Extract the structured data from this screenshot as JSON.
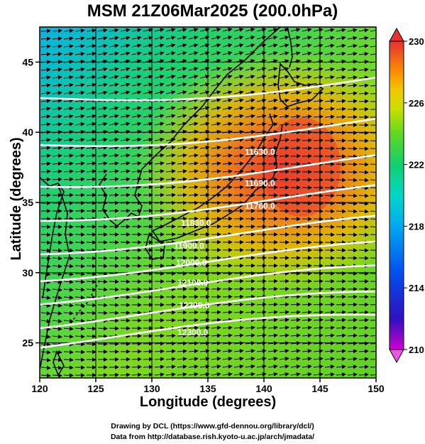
{
  "title": "MSM 21Z06Mar2025 (200.0hPa)",
  "x_axis": {
    "label": "Longitude (degrees)",
    "min": 120,
    "max": 150,
    "ticks": [
      120,
      125,
      130,
      135,
      140,
      145,
      150
    ]
  },
  "y_axis": {
    "label": "Latitude  (degrees)",
    "min": 22.5,
    "max": 47.5,
    "ticks": [
      25,
      30,
      35,
      40,
      45
    ]
  },
  "colorbar": {
    "min": 210,
    "max": 230,
    "labels": [
      230,
      226,
      222,
      218,
      214,
      210
    ],
    "colors": [
      "#d000d0",
      "#3010c0",
      "#0050f0",
      "#00a8f0",
      "#00d8c8",
      "#10d070",
      "#40d020",
      "#a8e010",
      "#e8d000",
      "#f8a000",
      "#f86820",
      "#e83030"
    ]
  },
  "contours": [
    {
      "label": "11630.0"
    },
    {
      "label": "11690.0"
    },
    {
      "label": "11760.0"
    },
    {
      "label": "11830.0"
    },
    {
      "label": "11900.0"
    },
    {
      "label": "12000.0"
    },
    {
      "label": "12100.0"
    },
    {
      "label": "12200.0"
    },
    {
      "label": "12300.0"
    }
  ],
  "credits": {
    "line1": "Drawing by DCL (https://www.gfd-dennou.org/library/dcl/)",
    "line2": "Data from http://database.rish.kyoto-u.ac.jp/arch/jmadata/"
  }
}
